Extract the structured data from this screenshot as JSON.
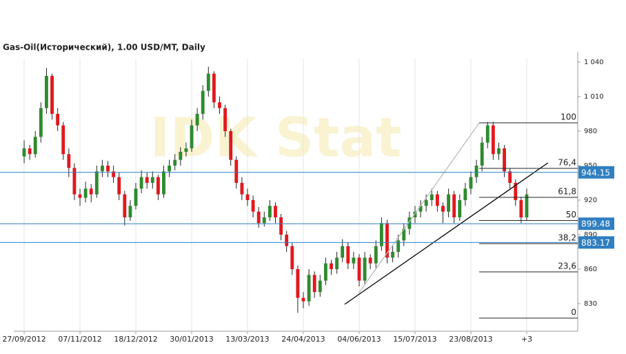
{
  "chart_data": {
    "type": "candlestick",
    "title": "Gas-Oil(Исторический), 1.00 USD/MT, Daily",
    "watermark": "IDK Stat",
    "up_color": "#2e8b2e",
    "down_color": "#e0191f",
    "open": [
      958,
      965,
      960,
      975,
      1000,
      1028,
      995,
      985,
      960,
      948,
      925,
      922,
      930,
      925,
      945,
      950,
      945,
      940,
      925,
      905,
      915,
      930,
      940,
      935,
      940,
      925,
      945,
      950,
      955,
      962,
      965,
      985,
      995,
      1015,
      1030,
      1005,
      1000,
      980,
      955,
      935,
      925,
      920,
      910,
      900,
      905,
      915,
      905,
      890,
      880,
      860,
      835,
      832,
      855,
      840,
      850,
      865,
      860,
      870,
      880,
      865,
      870,
      850,
      870,
      865,
      880,
      900,
      870,
      875,
      885,
      895,
      905,
      910,
      915,
      920,
      925,
      915,
      910,
      925,
      905,
      920,
      930,
      940,
      950,
      970,
      985,
      960,
      965,
      945,
      935,
      920,
      905
    ],
    "high": [
      972,
      968,
      980,
      1005,
      1035,
      1030,
      1000,
      988,
      965,
      952,
      930,
      936,
      934,
      950,
      955,
      954,
      950,
      944,
      928,
      920,
      935,
      946,
      944,
      945,
      942,
      950,
      955,
      960,
      966,
      970,
      990,
      1000,
      1020,
      1036,
      1032,
      1010,
      1003,
      982,
      958,
      940,
      930,
      924,
      914,
      910,
      920,
      918,
      908,
      893,
      883,
      863,
      840,
      860,
      858,
      855,
      870,
      868,
      875,
      886,
      883,
      875,
      873,
      875,
      873,
      885,
      905,
      903,
      880,
      890,
      900,
      910,
      915,
      920,
      925,
      930,
      928,
      918,
      930,
      928,
      925,
      935,
      945,
      955,
      975,
      988,
      988,
      970,
      968,
      948,
      938,
      923,
      930
    ],
    "low": [
      952,
      955,
      957,
      970,
      995,
      990,
      980,
      955,
      940,
      920,
      915,
      918,
      918,
      922,
      940,
      940,
      935,
      920,
      898,
      902,
      912,
      926,
      930,
      930,
      920,
      922,
      940,
      946,
      950,
      958,
      962,
      980,
      990,
      1010,
      1000,
      995,
      975,
      950,
      930,
      920,
      915,
      905,
      896,
      897,
      902,
      900,
      885,
      875,
      855,
      822,
      826,
      828,
      835,
      836,
      846,
      855,
      856,
      866,
      860,
      860,
      845,
      846,
      860,
      861,
      876,
      865,
      866,
      870,
      880,
      890,
      900,
      905,
      910,
      915,
      910,
      900,
      905,
      900,
      902,
      915,
      925,
      935,
      945,
      965,
      955,
      955,
      940,
      930,
      915,
      900,
      902
    ],
    "close": [
      965,
      960,
      975,
      1000,
      1028,
      995,
      985,
      960,
      948,
      925,
      922,
      930,
      925,
      945,
      950,
      945,
      940,
      925,
      905,
      915,
      930,
      940,
      935,
      940,
      925,
      945,
      950,
      955,
      962,
      965,
      985,
      995,
      1015,
      1030,
      1005,
      1000,
      980,
      955,
      935,
      925,
      920,
      910,
      900,
      905,
      915,
      905,
      890,
      880,
      860,
      835,
      832,
      855,
      840,
      850,
      865,
      860,
      870,
      880,
      865,
      870,
      850,
      870,
      865,
      880,
      900,
      870,
      875,
      885,
      895,
      905,
      910,
      915,
      920,
      925,
      915,
      910,
      925,
      905,
      920,
      930,
      940,
      950,
      970,
      985,
      960,
      965,
      945,
      935,
      920,
      905,
      925
    ],
    "xlim": [
      -0.62,
      99.14
    ],
    "xticks": [
      {
        "value": 0,
        "label": "27/09/2012"
      },
      {
        "value": 10,
        "label": "07/11/2012"
      },
      {
        "value": 20,
        "label": "18/12/2012"
      },
      {
        "value": 30,
        "label": "30/01/2013"
      },
      {
        "value": 40,
        "label": "13/03/2013"
      },
      {
        "value": 50,
        "label": "24/04/2013"
      },
      {
        "value": 60,
        "label": "04/06/2013"
      },
      {
        "value": 70,
        "label": "15/07/2013"
      },
      {
        "value": 80,
        "label": "23/08/2013"
      },
      {
        "value": 90,
        "label": "+3"
      }
    ],
    "ylim": [
      806,
      1046
    ],
    "yticks": [
      {
        "value": 1040,
        "label": "1 040"
      },
      {
        "value": 1010,
        "label": "1 010"
      },
      980,
      950,
      920,
      890,
      860,
      830
    ],
    "price_lines": [
      944.15,
      899.48,
      883.17
    ],
    "price_line_color": "#2f7fc1",
    "fibonacci": [
      {
        "value": 987.2,
        "label": "100"
      },
      {
        "value": 947.6,
        "label": "76,4"
      },
      {
        "value": 922.4,
        "label": "61,8"
      },
      {
        "value": 902.3,
        "label": "50"
      },
      {
        "value": 882.2,
        "label": "38,2"
      },
      {
        "value": 857.6,
        "label": "23,6"
      },
      {
        "value": 817.4,
        "label": "0"
      }
    ],
    "trendlines": [
      {
        "x": [
          57.4,
          93.8
        ],
        "y": [
          829.4,
          952.4
        ],
        "color": "#000000"
      },
      {
        "x": [
          59.9,
          81.5
        ],
        "y": [
          839,
          987.2
        ],
        "color": "#bbbbbb"
      }
    ]
  }
}
